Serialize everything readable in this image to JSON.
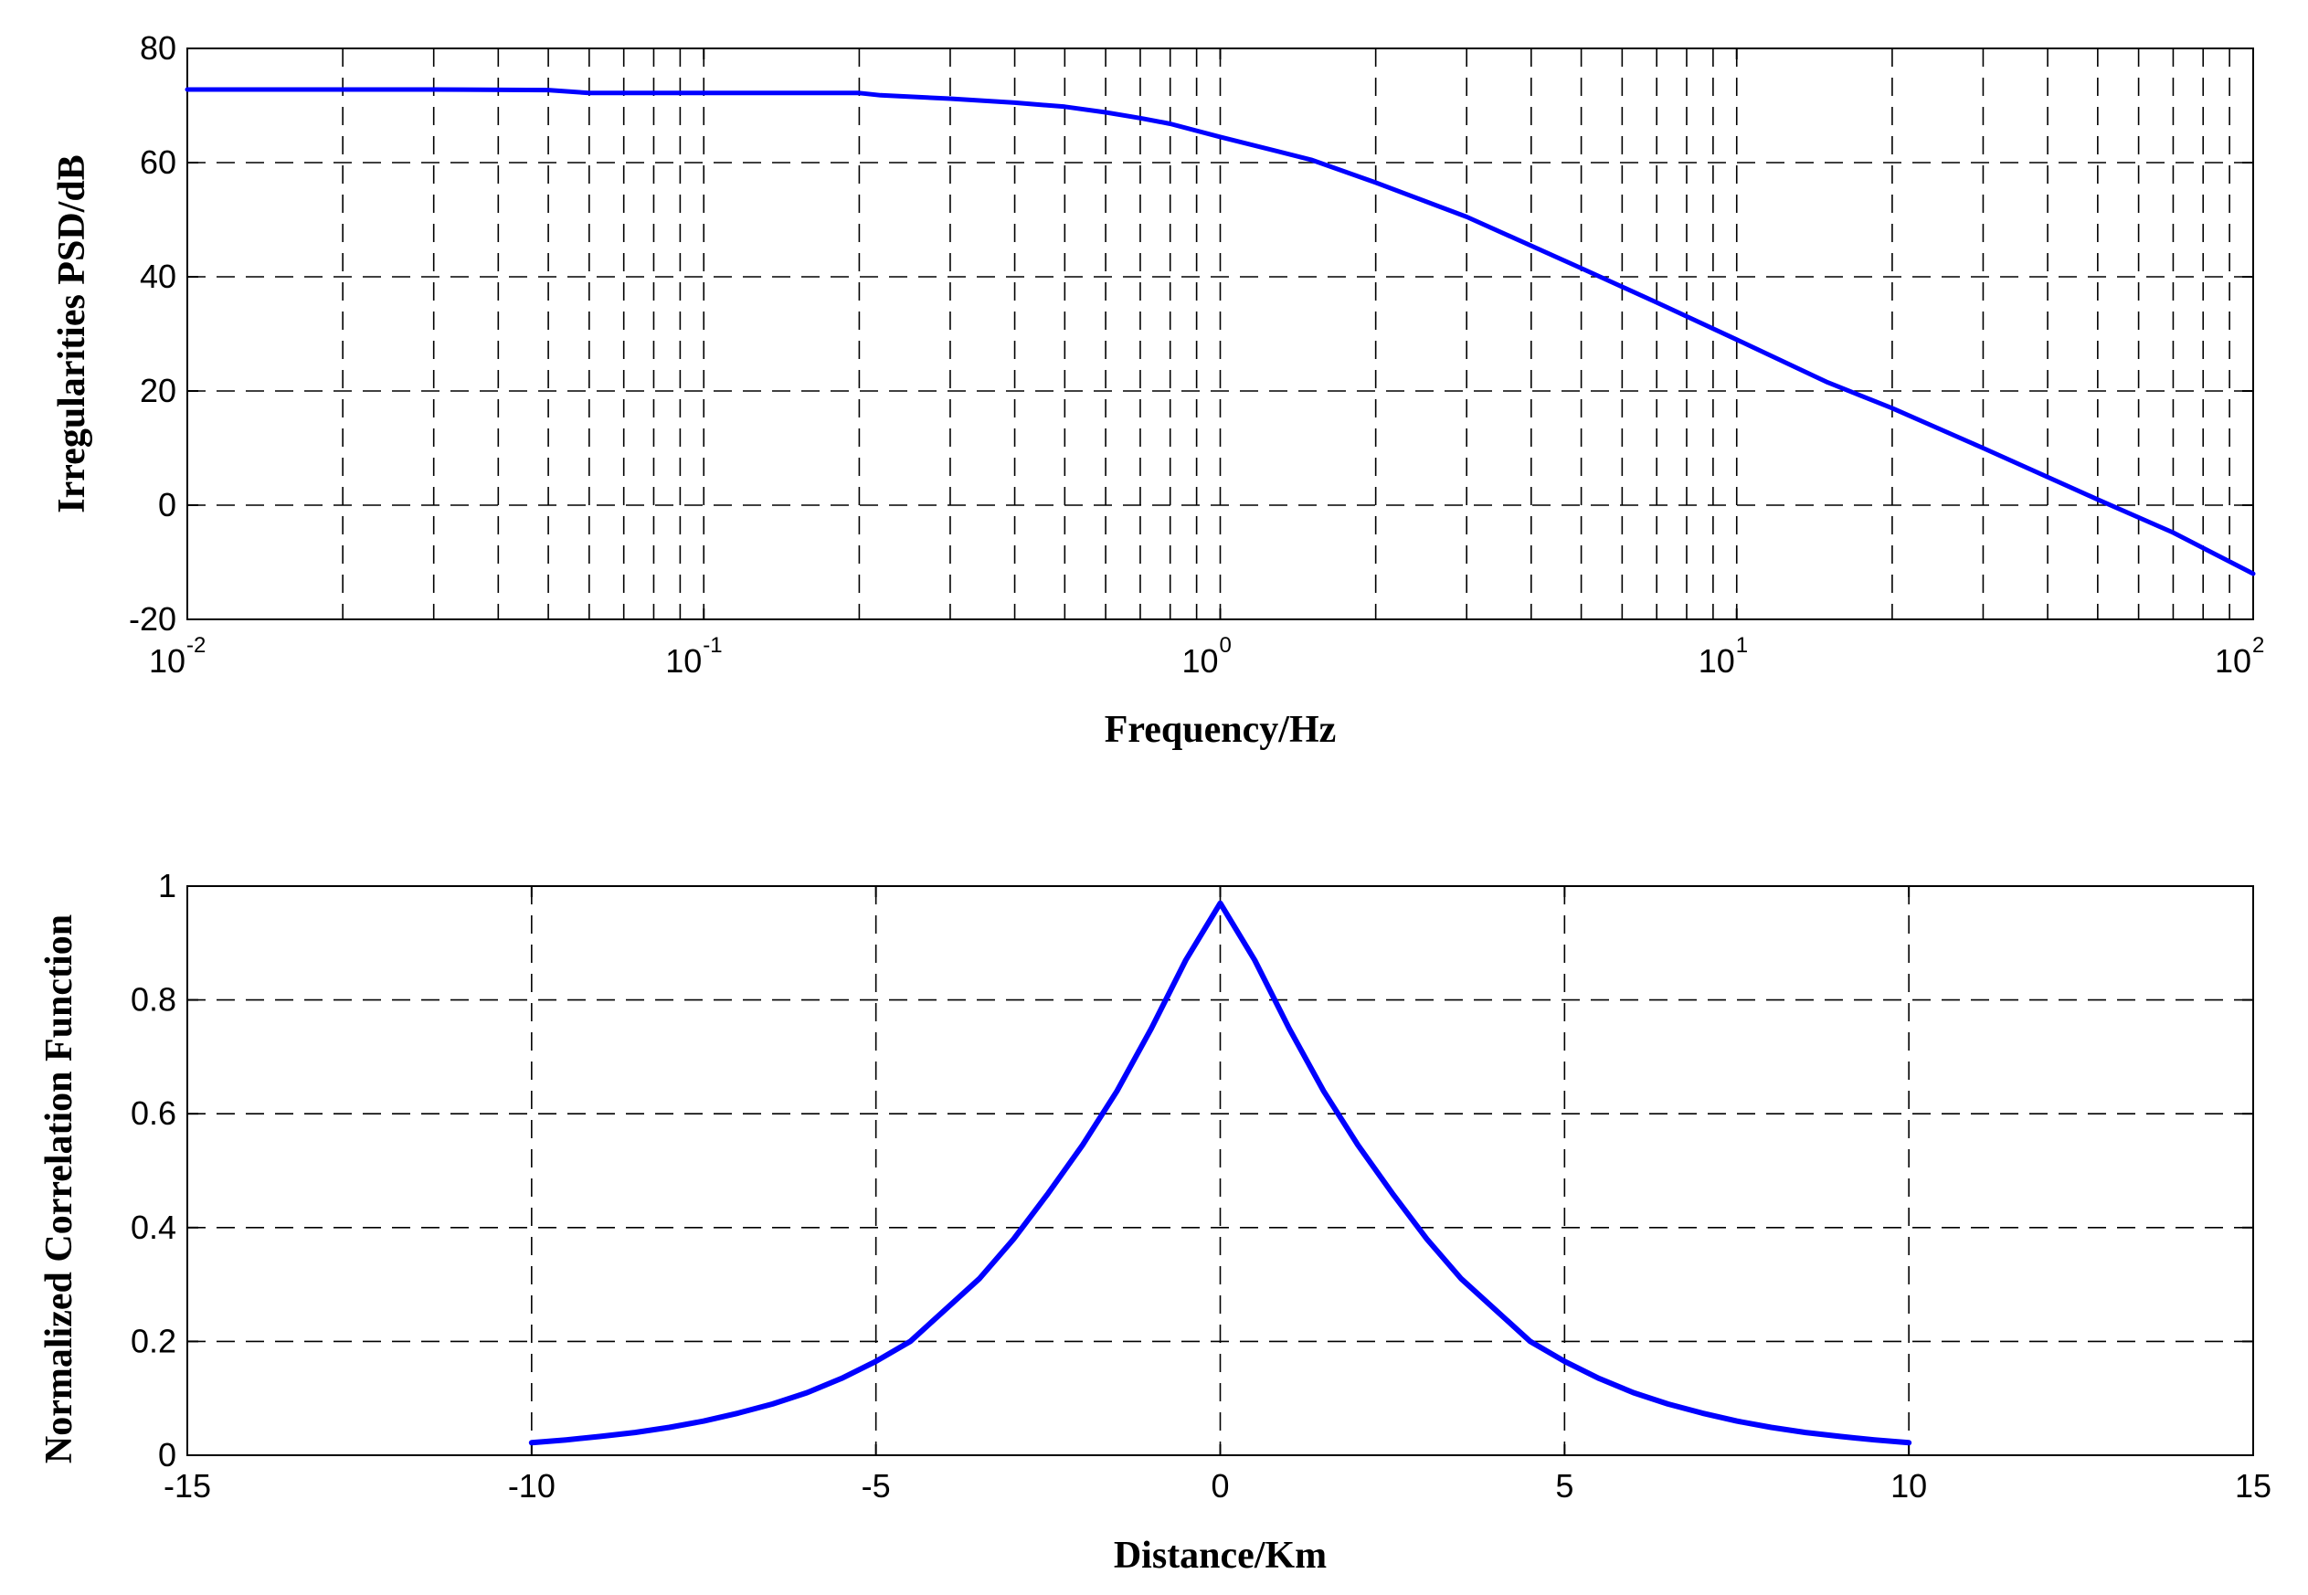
{
  "chart_data": [
    {
      "type": "line",
      "xscale": "log",
      "xlabel": "Frequency/Hz",
      "ylabel": "Irregularities PSD/dB",
      "xlim": [
        0.01,
        100
      ],
      "ylim": [
        -20,
        80
      ],
      "xtick_labels": [
        {
          "value": 0.01,
          "base": "10",
          "exp": "-2"
        },
        {
          "value": 0.1,
          "base": "10",
          "exp": "-1"
        },
        {
          "value": 1,
          "base": "10",
          "exp": "0"
        },
        {
          "value": 10,
          "base": "10",
          "exp": "1"
        },
        {
          "value": 100,
          "base": "10",
          "exp": "2"
        }
      ],
      "yticks": [
        -20,
        0,
        20,
        40,
        60,
        80
      ],
      "grid": true,
      "series_color": "#0000ff",
      "x": [
        0.01,
        0.02,
        0.03,
        0.05,
        0.06,
        0.08,
        0.1,
        0.15,
        0.2,
        0.22,
        0.3,
        0.4,
        0.5,
        0.6,
        0.7,
        0.8,
        1,
        1.5,
        2,
        3,
        5,
        7,
        10,
        15,
        20,
        30,
        50,
        70,
        100
      ],
      "y": [
        72.8,
        72.8,
        72.8,
        72.7,
        72.2,
        72.2,
        72.2,
        72.2,
        72.2,
        71.8,
        71.2,
        70.5,
        69.8,
        68.8,
        67.8,
        66.8,
        64.5,
        60.5,
        56.5,
        50.5,
        41.5,
        35.5,
        29.0,
        21.5,
        17.0,
        10.0,
        1.0,
        -4.8,
        -12.0
      ]
    },
    {
      "type": "line",
      "xlabel": "Distance/Km",
      "ylabel": "Normalized Correlation Function",
      "xlim": [
        -15,
        15
      ],
      "ylim": [
        0,
        1
      ],
      "xticks": [
        -15,
        -10,
        -5,
        0,
        5,
        10,
        15
      ],
      "yticks": [
        0,
        0.2,
        0.4,
        0.6,
        0.8,
        1
      ],
      "grid": true,
      "series_color": "#0000ff",
      "x": [
        -10,
        -9.5,
        -9,
        -8.5,
        -8,
        -7.5,
        -7,
        -6.5,
        -6,
        -5.5,
        -5,
        -4.5,
        -4,
        -3.5,
        -3,
        -2.5,
        -2,
        -1.5,
        -1,
        -0.5,
        0,
        0.5,
        1,
        1.5,
        2,
        2.5,
        3,
        3.5,
        4,
        4.5,
        5,
        5.5,
        6,
        6.5,
        7,
        7.5,
        8,
        8.5,
        9,
        9.5,
        10
      ],
      "y": [
        0.022,
        0.027,
        0.033,
        0.04,
        0.049,
        0.06,
        0.074,
        0.09,
        0.11,
        0.135,
        0.165,
        0.2,
        0.255,
        0.31,
        0.38,
        0.46,
        0.545,
        0.64,
        0.75,
        0.87,
        0.97,
        0.87,
        0.75,
        0.64,
        0.545,
        0.46,
        0.38,
        0.31,
        0.255,
        0.2,
        0.165,
        0.135,
        0.11,
        0.09,
        0.074,
        0.06,
        0.049,
        0.04,
        0.033,
        0.027,
        0.022
      ]
    }
  ]
}
